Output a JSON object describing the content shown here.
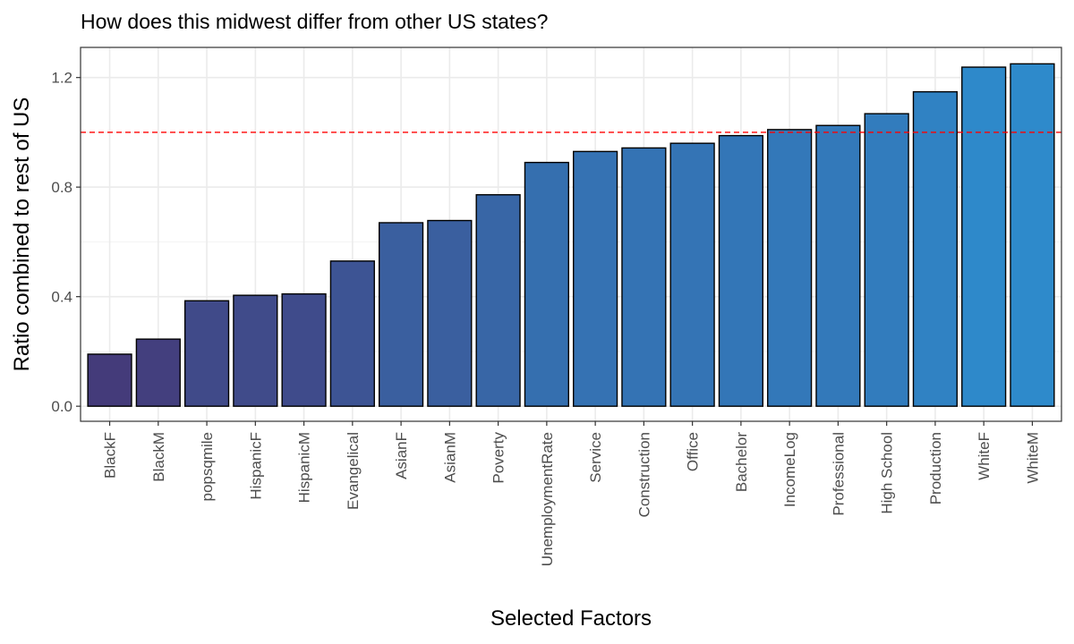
{
  "chart_data": {
    "type": "bar",
    "title": "How does this midwest differ from other US states?",
    "xlabel": "Selected Factors",
    "ylabel": "Ratio combined to rest of US",
    "categories": [
      "BlackF",
      "BlackM",
      "popsqmile",
      "HispanicF",
      "HispanicM",
      "Evangelical",
      "AsianF",
      "AsianM",
      "Poverty",
      "UnemploymentRate",
      "Service",
      "Construction",
      "Office",
      "Bachelor",
      "IncomeLog",
      "Professional",
      "High School",
      "Production",
      "WhiteF",
      "WhiteM"
    ],
    "values": [
      0.19,
      0.245,
      0.385,
      0.405,
      0.41,
      0.53,
      0.67,
      0.678,
      0.772,
      0.89,
      0.93,
      0.943,
      0.96,
      0.988,
      1.01,
      1.025,
      1.068,
      1.148,
      1.238,
      1.25
    ],
    "ylim": [
      -0.055,
      1.31
    ],
    "yticks": [
      0.0,
      0.4,
      0.8,
      1.2
    ],
    "ytick_labels": [
      "0.0",
      "0.4",
      "0.8",
      "1.2"
    ],
    "reference_line": {
      "y": 1.0,
      "style": "dashed",
      "color": "#ff0000"
    },
    "fill_gradient": {
      "low": "#443b7a",
      "high": "#2e8acb"
    },
    "bar_outline": "#000000",
    "grid": true,
    "legend": "none",
    "theme": "bw"
  }
}
